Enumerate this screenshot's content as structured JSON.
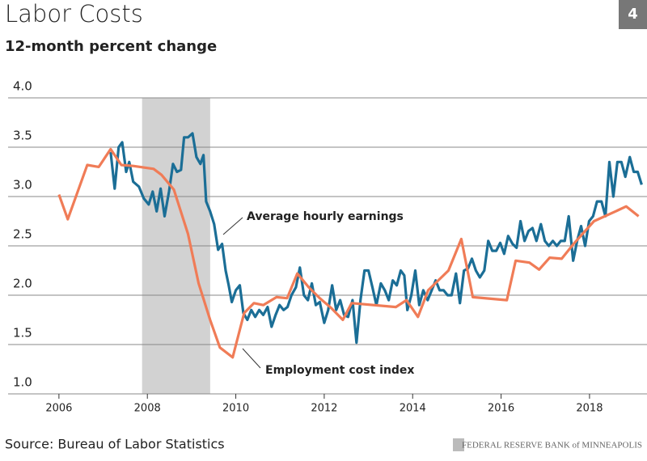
{
  "chart_data": {
    "type": "line",
    "title": "Labor Costs",
    "subtitle": "12-month percent change",
    "page_number": "4",
    "source": "Source: Bureau of Labor Statistics",
    "footer": "FEDERAL RESERVE BANK of MINNEAPOLIS",
    "xlim": [
      2004.85,
      2019.3
    ],
    "xticks": [
      2006,
      2008,
      2010,
      2012,
      2014,
      2016,
      2018
    ],
    "ylim": [
      1,
      4
    ],
    "yticks": [
      {
        "value": 1,
        "label": "1.0"
      },
      1.5,
      {
        "value": 2,
        "label": "2.0"
      },
      2.5,
      {
        "value": 3,
        "label": "3.0"
      },
      3.5,
      {
        "value": 4,
        "label": "4.0"
      }
    ],
    "grid": true,
    "recession": [
      2007.88,
      2009.42
    ],
    "series": [
      {
        "name": "Average hourly earnings",
        "color": "#1b6e96",
        "x": [
          2007.17,
          2007.26,
          2007.35,
          2007.43,
          2007.52,
          2007.59,
          2007.68,
          2007.81,
          2007.92,
          2008.03,
          2008.12,
          2008.21,
          2008.3,
          2008.39,
          2008.49,
          2008.58,
          2008.67,
          2008.76,
          2008.83,
          2008.92,
          2009.02,
          2009.11,
          2009.2,
          2009.27,
          2009.33,
          2009.42,
          2009.51,
          2009.6,
          2009.69,
          2009.77,
          2009.84,
          2009.91,
          2010.0,
          2010.09,
          2010.17,
          2010.26,
          2010.35,
          2010.44,
          2010.53,
          2010.62,
          2010.72,
          2010.81,
          2010.9,
          2010.99,
          2011.08,
          2011.17,
          2011.26,
          2011.36,
          2011.45,
          2011.54,
          2011.63,
          2011.72,
          2011.81,
          2011.9,
          2012.0,
          2012.09,
          2012.18,
          2012.27,
          2012.36,
          2012.45,
          2012.54,
          2012.64,
          2012.73,
          2012.82,
          2012.91,
          2013.0,
          2013.09,
          2013.18,
          2013.28,
          2013.37,
          2013.46,
          2013.55,
          2013.64,
          2013.73,
          2013.81,
          2013.88,
          2013.97,
          2014.06,
          2014.15,
          2014.24,
          2014.34,
          2014.43,
          2014.52,
          2014.61,
          2014.7,
          2014.79,
          2014.88,
          2014.98,
          2015.07,
          2015.16,
          2015.25,
          2015.34,
          2015.43,
          2015.52,
          2015.62,
          2015.71,
          2015.8,
          2015.89,
          2015.98,
          2016.07,
          2016.16,
          2016.26,
          2016.35,
          2016.44,
          2016.53,
          2016.62,
          2016.71,
          2016.8,
          2016.9,
          2016.99,
          2017.08,
          2017.17,
          2017.26,
          2017.35,
          2017.44,
          2017.53,
          2017.63,
          2017.72,
          2017.81,
          2017.9,
          2017.99,
          2018.08,
          2018.17,
          2018.27,
          2018.36,
          2018.45,
          2018.54,
          2018.63,
          2018.72,
          2018.81,
          2018.91,
          2019.0,
          2019.09,
          2019.18
        ],
        "values": [
          3.45,
          3.08,
          3.5,
          3.55,
          3.25,
          3.35,
          3.15,
          3.1,
          2.98,
          2.92,
          3.05,
          2.85,
          3.08,
          2.8,
          3.05,
          3.33,
          3.25,
          3.27,
          3.6,
          3.6,
          3.64,
          3.4,
          3.33,
          3.42,
          2.95,
          2.85,
          2.72,
          2.46,
          2.52,
          2.25,
          2.1,
          1.93,
          2.05,
          2.1,
          1.82,
          1.75,
          1.85,
          1.78,
          1.85,
          1.8,
          1.88,
          1.68,
          1.8,
          1.9,
          1.85,
          1.88,
          2.0,
          2.08,
          2.28,
          2.0,
          1.95,
          2.12,
          1.9,
          1.93,
          1.72,
          1.85,
          2.1,
          1.85,
          1.95,
          1.8,
          1.78,
          1.95,
          1.52,
          1.95,
          2.25,
          2.25,
          2.08,
          1.9,
          2.12,
          2.05,
          1.95,
          2.15,
          2.1,
          2.25,
          2.2,
          1.85,
          2.0,
          2.25,
          1.9,
          2.05,
          1.95,
          2.05,
          2.15,
          2.05,
          2.05,
          2.0,
          2.0,
          2.22,
          1.92,
          2.25,
          2.27,
          2.37,
          2.25,
          2.18,
          2.25,
          2.55,
          2.45,
          2.45,
          2.53,
          2.42,
          2.6,
          2.52,
          2.48,
          2.75,
          2.55,
          2.65,
          2.68,
          2.55,
          2.72,
          2.55,
          2.5,
          2.55,
          2.5,
          2.55,
          2.55,
          2.8,
          2.35,
          2.55,
          2.7,
          2.5,
          2.75,
          2.8,
          2.95,
          2.95,
          2.8,
          3.35,
          3.0,
          3.35,
          3.35,
          3.2,
          3.4,
          3.25,
          3.25,
          3.12
        ]
      },
      {
        "name": "Employment cost index",
        "color": "#f07c57",
        "x": [
          2006.0,
          2006.2,
          2006.64,
          2006.9,
          2007.17,
          2007.41,
          2007.68,
          2008.14,
          2008.32,
          2008.6,
          2008.92,
          2009.16,
          2009.42,
          2009.64,
          2009.93,
          2010.19,
          2010.41,
          2010.62,
          2010.92,
          2011.16,
          2011.39,
          2011.65,
          2011.9,
          2012.16,
          2012.42,
          2012.62,
          2013.62,
          2013.86,
          2014.12,
          2014.35,
          2014.81,
          2015.1,
          2015.36,
          2016.13,
          2016.33,
          2016.64,
          2016.86,
          2017.1,
          2017.37,
          2017.64,
          2018.1,
          2018.59,
          2018.83,
          2019.11
        ],
        "values": [
          3.02,
          2.77,
          3.32,
          3.3,
          3.48,
          3.32,
          3.31,
          3.28,
          3.22,
          3.07,
          2.62,
          2.12,
          1.75,
          1.47,
          1.37,
          1.82,
          1.92,
          1.9,
          1.98,
          1.97,
          2.22,
          2.08,
          1.97,
          1.87,
          1.75,
          1.92,
          1.88,
          1.95,
          1.78,
          2.05,
          2.25,
          2.57,
          1.98,
          1.95,
          2.35,
          2.33,
          2.26,
          2.38,
          2.37,
          2.52,
          2.75,
          2.85,
          2.9,
          2.8
        ]
      }
    ]
  }
}
